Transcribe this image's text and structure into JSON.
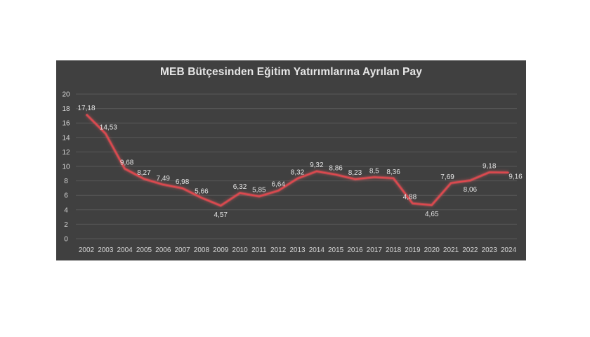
{
  "chart_data": {
    "type": "line",
    "title": "MEB Bütçesinden Eğitim Yatırımlarına Ayrılan Pay",
    "xlabel": "",
    "ylabel": "",
    "ylim": [
      0,
      20
    ],
    "y_ticks": [
      "0",
      "2",
      "4",
      "6",
      "8",
      "10",
      "12",
      "14",
      "16",
      "18",
      "20"
    ],
    "grid": true,
    "legend": "none",
    "colors": {
      "background": "#404040",
      "line": "#e0484e",
      "glow": "#ff5a5f",
      "text": "#d6d6d6"
    },
    "categories": [
      "2002",
      "2003",
      "2004",
      "2005",
      "2006",
      "2007",
      "2008",
      "2009",
      "2010",
      "2011",
      "2012",
      "2013",
      "2014",
      "2015",
      "2016",
      "2017",
      "2018",
      "2019",
      "2020",
      "2021",
      "2022",
      "2023",
      "2024"
    ],
    "values": [
      17.18,
      14.53,
      9.68,
      8.27,
      7.49,
      6.98,
      5.66,
      4.57,
      6.32,
      5.85,
      6.64,
      8.32,
      9.32,
      8.86,
      8.23,
      8.5,
      8.36,
      4.88,
      4.65,
      7.69,
      8.06,
      9.18,
      9.16
    ],
    "data_labels": [
      "17,18",
      "14,53",
      "9,68",
      "8,27",
      "7,49",
      "6,98",
      "5,66",
      "4,57",
      "6,32",
      "5,85",
      "6,64",
      "8,32",
      "9,32",
      "8,86",
      "8,23",
      "8,5",
      "8,36",
      "4,88",
      "4,65",
      "7,69",
      "8,06",
      "9,18",
      "9,16"
    ]
  }
}
